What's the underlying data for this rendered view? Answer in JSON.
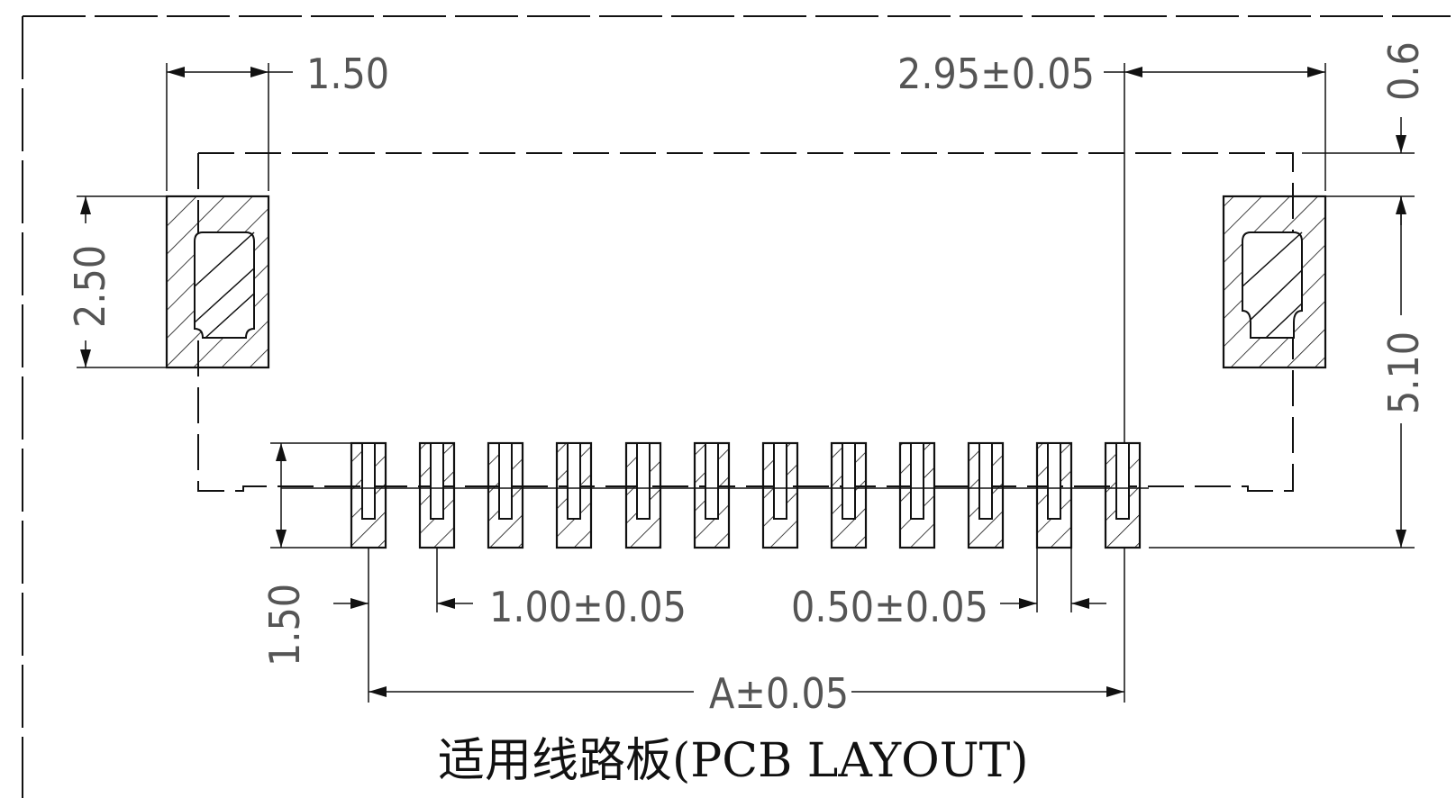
{
  "drawing": {
    "title": "适用线路板(PCB LAYOUT)",
    "dimensions": {
      "pad_width": "1.50",
      "pad_height": "2.50",
      "pin_height": "1.50",
      "edge_offset": "2.95±0.05",
      "edge_gap": "0.6",
      "total_height": "5.10",
      "pitch": "1.00±0.05",
      "pin_width": "0.50±0.05",
      "span": "A±0.05"
    },
    "pin_count": 12
  }
}
